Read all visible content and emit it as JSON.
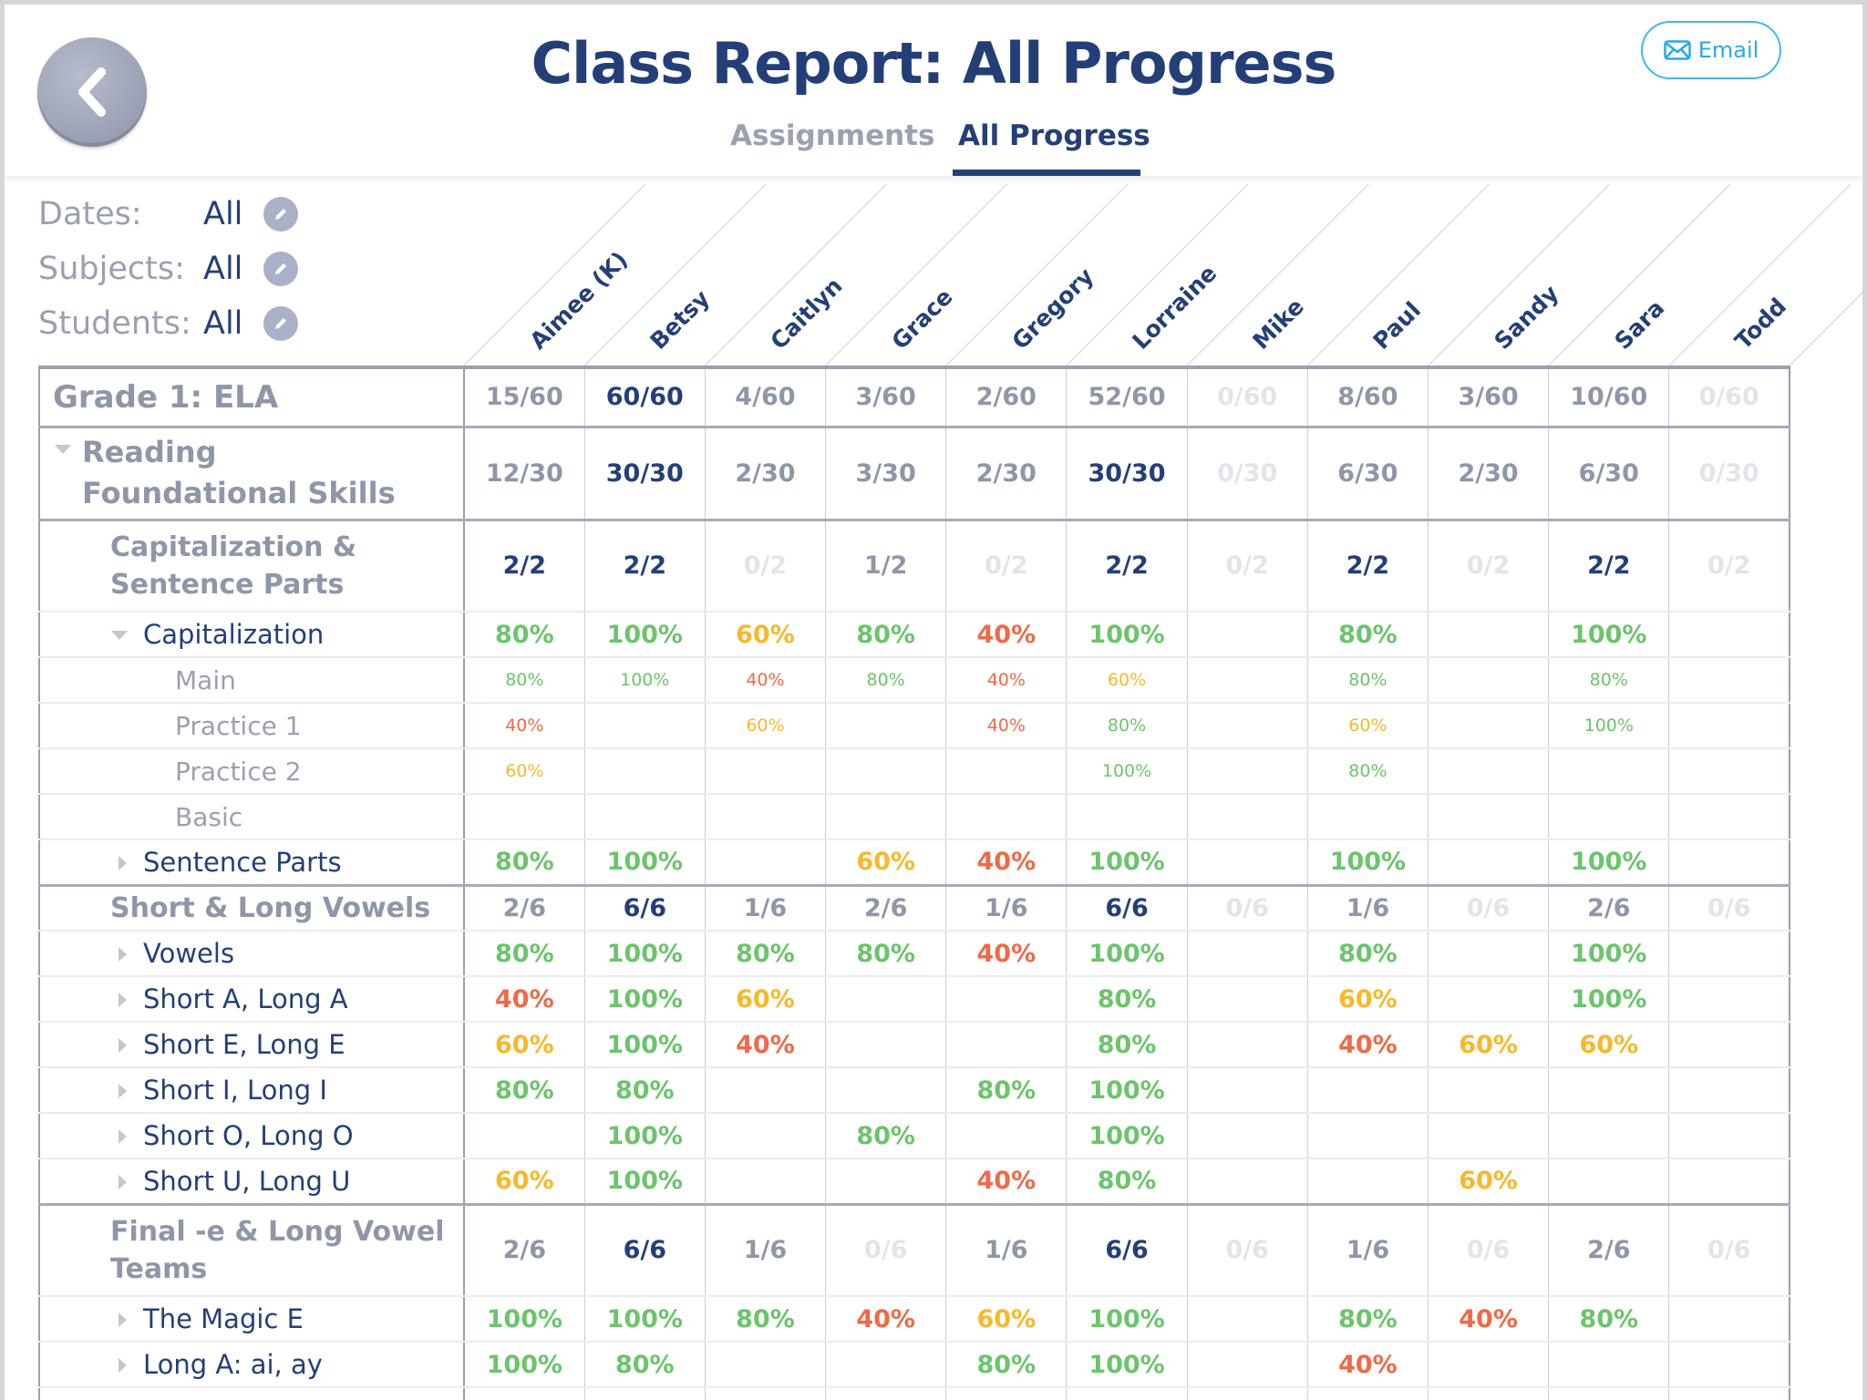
{
  "header": {
    "title": "Class Report: All Progress",
    "back_icon": "chevron-left-icon",
    "email_label": "Email",
    "email_icon": "envelope-icon",
    "tabs": [
      {
        "label": "Assignments",
        "active": false
      },
      {
        "label": "All Progress",
        "active": true
      }
    ]
  },
  "filters": [
    {
      "label": "Dates:",
      "value": "All"
    },
    {
      "label": "Subjects:",
      "value": "All"
    },
    {
      "label": "Students:",
      "value": "All"
    }
  ],
  "students": [
    "Aimee (K)",
    "Betsy",
    "Caitlyn",
    "Grace",
    "Gregory",
    "Lorraine",
    "Mike",
    "Paul",
    "Sandy",
    "Sara",
    "Todd"
  ],
  "colors": {
    "navy": "#243f78",
    "gray": "#8f96a8",
    "faint": "#e2e4ea",
    "green": "#6cc46c",
    "orange": "#f8b82c",
    "red": "#ee6a48",
    "email": "#3cb8ef"
  },
  "rows": [
    {
      "type": "grade",
      "label": "Grade 1: ELA",
      "values": [
        "15/60",
        "60/60",
        "4/60",
        "3/60",
        "2/60",
        "52/60",
        "0/60",
        "8/60",
        "3/60",
        "10/60",
        "0/60"
      ]
    },
    {
      "type": "reading",
      "label": "Reading Foundational Skills",
      "expanded": true,
      "values": [
        "12/30",
        "30/30",
        "2/30",
        "3/30",
        "2/30",
        "30/30",
        "0/30",
        "6/30",
        "2/30",
        "6/30",
        "0/30"
      ]
    },
    {
      "type": "group",
      "label": "Capitalization & Sentence Parts",
      "values": [
        "2/2",
        "2/2",
        "0/2",
        "1/2",
        "0/2",
        "2/2",
        "0/2",
        "2/2",
        "0/2",
        "2/2",
        "0/2"
      ]
    },
    {
      "type": "item",
      "label": "Capitalization",
      "expanded": true,
      "values": [
        "80%",
        "100%",
        "60%",
        "80%",
        "40%",
        "100%",
        "",
        "80%",
        "",
        "100%",
        ""
      ]
    },
    {
      "type": "sub",
      "label": "Main",
      "values": [
        "80%",
        "100%",
        "40%",
        "80%",
        "40%",
        "60%",
        "",
        "80%",
        "",
        "80%",
        ""
      ]
    },
    {
      "type": "sub",
      "label": "Practice 1",
      "values": [
        "40%",
        "",
        "60%",
        "",
        "40%",
        "80%",
        "",
        "60%",
        "",
        "100%",
        ""
      ]
    },
    {
      "type": "sub",
      "label": "Practice 2",
      "values": [
        "60%",
        "",
        "",
        "",
        "",
        "100%",
        "",
        "80%",
        "",
        "",
        ""
      ]
    },
    {
      "type": "sub",
      "label": "Basic",
      "values": [
        "",
        "",
        "",
        "",
        "",
        "",
        "",
        "",
        "",
        "",
        ""
      ]
    },
    {
      "type": "item",
      "label": "Sentence Parts",
      "expanded": false,
      "values": [
        "80%",
        "100%",
        "",
        "60%",
        "40%",
        "100%",
        "",
        "100%",
        "",
        "100%",
        ""
      ]
    },
    {
      "type": "group",
      "label": "Short & Long Vowels",
      "values": [
        "2/6",
        "6/6",
        "1/6",
        "2/6",
        "1/6",
        "6/6",
        "0/6",
        "1/6",
        "0/6",
        "2/6",
        "0/6"
      ]
    },
    {
      "type": "item",
      "label": "Vowels",
      "expanded": false,
      "values": [
        "80%",
        "100%",
        "80%",
        "80%",
        "40%",
        "100%",
        "",
        "80%",
        "",
        "100%",
        ""
      ]
    },
    {
      "type": "item",
      "label": "Short A, Long A",
      "expanded": false,
      "values": [
        "40%",
        "100%",
        "60%",
        "",
        "",
        "80%",
        "",
        "60%",
        "",
        "100%",
        ""
      ]
    },
    {
      "type": "item",
      "label": "Short E, Long E",
      "expanded": false,
      "values": [
        "60%",
        "100%",
        "40%",
        "",
        "",
        "80%",
        "",
        "40%",
        "60%",
        "60%",
        ""
      ]
    },
    {
      "type": "item",
      "label": "Short I, Long I",
      "expanded": false,
      "values": [
        "80%",
        "80%",
        "",
        "",
        "80%",
        "100%",
        "",
        "",
        "",
        "",
        ""
      ]
    },
    {
      "type": "item",
      "label": "Short O, Long O",
      "expanded": false,
      "values": [
        "",
        "100%",
        "",
        "80%",
        "",
        "100%",
        "",
        "",
        "",
        "",
        ""
      ]
    },
    {
      "type": "item",
      "label": "Short U, Long U",
      "expanded": false,
      "values": [
        "60%",
        "100%",
        "",
        "",
        "40%",
        "80%",
        "",
        "",
        "60%",
        "",
        ""
      ]
    },
    {
      "type": "group",
      "label": "Final -e & Long Vowel Teams",
      "values": [
        "2/6",
        "6/6",
        "1/6",
        "0/6",
        "1/6",
        "6/6",
        "0/6",
        "1/6",
        "0/6",
        "2/6",
        "0/6"
      ]
    },
    {
      "type": "item",
      "label": "The Magic E",
      "expanded": false,
      "values": [
        "100%",
        "100%",
        "80%",
        "40%",
        "60%",
        "100%",
        "",
        "80%",
        "40%",
        "80%",
        ""
      ]
    },
    {
      "type": "item",
      "label": "Long A: ai, ay",
      "expanded": false,
      "values": [
        "100%",
        "80%",
        "",
        "",
        "80%",
        "100%",
        "",
        "40%",
        "",
        "",
        ""
      ]
    }
  ]
}
